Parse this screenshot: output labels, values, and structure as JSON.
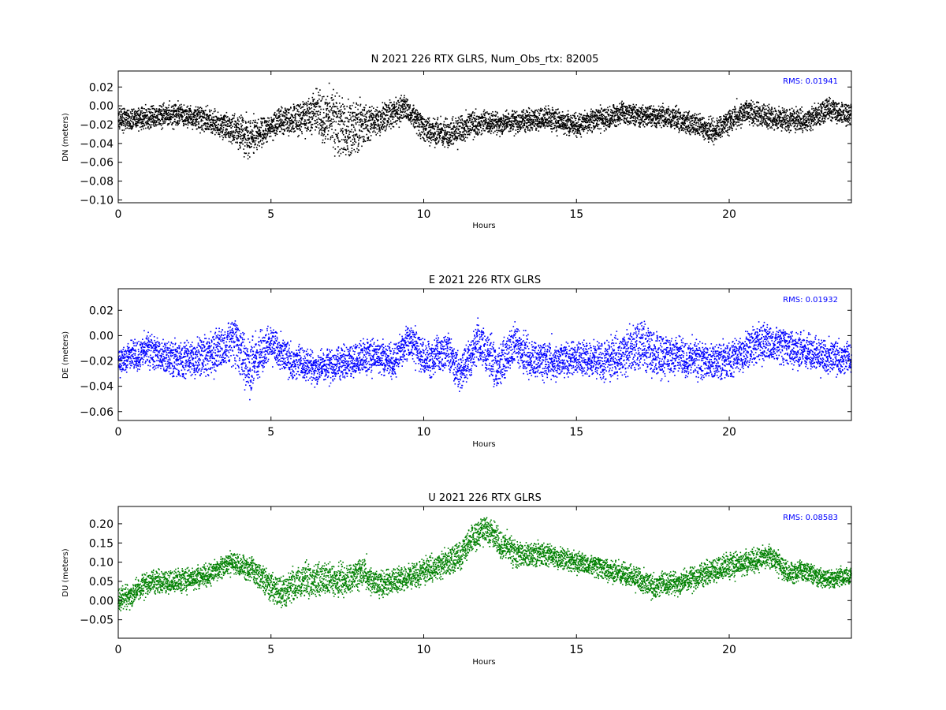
{
  "chart_data": [
    {
      "type": "scatter",
      "title": "N 2021 226 RTX  GLRS, Num_Obs_rtx: 82005",
      "xlabel": "Hours",
      "ylabel": "DN (meters)",
      "xlim": [
        0,
        24
      ],
      "ylim": [
        -0.103,
        0.037
      ],
      "xticks": [
        0,
        5,
        10,
        15,
        20
      ],
      "yticks": [
        0.02,
        0.0,
        -0.02,
        -0.04,
        -0.06,
        -0.08,
        -0.1
      ],
      "ytick_labels": [
        "0.02",
        "0.00",
        "−0.02",
        "−0.04",
        "−0.06",
        "−0.08",
        "−0.10"
      ],
      "rms_label": "RMS:  0.01941",
      "color": "#000000",
      "trend": [
        [
          0,
          -0.015
        ],
        [
          1,
          -0.012
        ],
        [
          2,
          -0.01
        ],
        [
          3,
          -0.016
        ],
        [
          3.8,
          -0.025
        ],
        [
          4.3,
          -0.035
        ],
        [
          5,
          -0.022
        ],
        [
          5.8,
          -0.012
        ],
        [
          6.5,
          -0.008
        ],
        [
          7.5,
          -0.025
        ],
        [
          8.3,
          -0.018
        ],
        [
          9.4,
          -0.002
        ],
        [
          10,
          -0.025
        ],
        [
          10.8,
          -0.03
        ],
        [
          11.5,
          -0.02
        ],
        [
          12.5,
          -0.018
        ],
        [
          14,
          -0.013
        ],
        [
          15,
          -0.02
        ],
        [
          16.5,
          -0.009
        ],
        [
          18,
          -0.012
        ],
        [
          19,
          -0.02
        ],
        [
          19.5,
          -0.028
        ],
        [
          20.5,
          -0.006
        ],
        [
          21.5,
          -0.014
        ],
        [
          22.5,
          -0.016
        ],
        [
          23.3,
          -0.005
        ],
        [
          24,
          -0.008
        ]
      ],
      "spread": [
        [
          0,
          0.011
        ],
        [
          3.5,
          0.012
        ],
        [
          4.2,
          0.02
        ],
        [
          5,
          0.011
        ],
        [
          6,
          0.017
        ],
        [
          7.5,
          0.032
        ],
        [
          8.3,
          0.016
        ],
        [
          9.5,
          0.012
        ],
        [
          11,
          0.014
        ],
        [
          12,
          0.011
        ],
        [
          24,
          0.011
        ]
      ]
    },
    {
      "type": "scatter",
      "title": "E 2021 226 RTX  GLRS",
      "xlabel": "Hours",
      "ylabel": "DE (meters)",
      "xlim": [
        0,
        24
      ],
      "ylim": [
        -0.067,
        0.037
      ],
      "xticks": [
        0,
        5,
        10,
        15,
        20
      ],
      "yticks": [
        0.02,
        0.0,
        -0.02,
        -0.04,
        -0.06
      ],
      "ytick_labels": [
        "0.02",
        "0.00",
        "−0.02",
        "−0.04",
        "−0.06"
      ],
      "rms_label": "RMS:  0.01932",
      "color": "#0000ff",
      "trend": [
        [
          0,
          -0.02
        ],
        [
          1,
          -0.012
        ],
        [
          2,
          -0.02
        ],
        [
          3,
          -0.015
        ],
        [
          3.8,
          -0.005
        ],
        [
          4.3,
          -0.025
        ],
        [
          5,
          -0.005
        ],
        [
          5.7,
          -0.022
        ],
        [
          6.5,
          -0.025
        ],
        [
          7.5,
          -0.02
        ],
        [
          8.5,
          -0.015
        ],
        [
          9,
          -0.02
        ],
        [
          9.5,
          -0.005
        ],
        [
          10.2,
          -0.02
        ],
        [
          10.8,
          -0.012
        ],
        [
          11.2,
          -0.03
        ],
        [
          11.8,
          -0.005
        ],
        [
          12.4,
          -0.025
        ],
        [
          13,
          -0.005
        ],
        [
          13.5,
          -0.02
        ],
        [
          14.5,
          -0.02
        ],
        [
          15,
          -0.018
        ],
        [
          16,
          -0.02
        ],
        [
          17,
          -0.01
        ],
        [
          18,
          -0.015
        ],
        [
          19,
          -0.02
        ],
        [
          20,
          -0.02
        ],
        [
          21,
          -0.005
        ],
        [
          22,
          -0.01
        ],
        [
          23,
          -0.015
        ],
        [
          24,
          -0.02
        ]
      ],
      "spread": [
        [
          0,
          0.01
        ],
        [
          3.5,
          0.016
        ],
        [
          4.3,
          0.02
        ],
        [
          5,
          0.012
        ],
        [
          9,
          0.012
        ],
        [
          11,
          0.014
        ],
        [
          12,
          0.016
        ],
        [
          15,
          0.011
        ],
        [
          16.5,
          0.016
        ],
        [
          17.5,
          0.018
        ],
        [
          18.5,
          0.013
        ],
        [
          21,
          0.014
        ],
        [
          24,
          0.011
        ]
      ]
    },
    {
      "type": "scatter",
      "title": "U 2021 226 RTX  GLRS",
      "xlabel": "Hours",
      "ylabel": "DU (meters)",
      "xlim": [
        0,
        24
      ],
      "ylim": [
        -0.098,
        0.245
      ],
      "xticks": [
        0,
        5,
        10,
        15,
        20
      ],
      "yticks": [
        0.2,
        0.15,
        0.1,
        0.05,
        0.0,
        -0.05
      ],
      "ytick_labels": [
        "0.20",
        "0.15",
        "0.10",
        "0.05",
        "0.00",
        "−0.05"
      ],
      "rms_label": "RMS:  0.08583",
      "color": "#008000",
      "trend": [
        [
          0,
          0.0
        ],
        [
          0.5,
          0.02
        ],
        [
          1,
          0.05
        ],
        [
          2,
          0.05
        ],
        [
          3,
          0.07
        ],
        [
          3.8,
          0.1
        ],
        [
          4.5,
          0.07
        ],
        [
          5.3,
          0.02
        ],
        [
          6,
          0.05
        ],
        [
          6.7,
          0.06
        ],
        [
          7.5,
          0.05
        ],
        [
          8,
          0.075
        ],
        [
          8.5,
          0.04
        ],
        [
          9.5,
          0.06
        ],
        [
          10.5,
          0.09
        ],
        [
          11.2,
          0.11
        ],
        [
          11.5,
          0.16
        ],
        [
          12,
          0.19
        ],
        [
          12.5,
          0.15
        ],
        [
          13,
          0.12
        ],
        [
          14,
          0.12
        ],
        [
          15,
          0.1
        ],
        [
          16,
          0.08
        ],
        [
          17,
          0.06
        ],
        [
          17.5,
          0.035
        ],
        [
          18.5,
          0.05
        ],
        [
          19.5,
          0.08
        ],
        [
          20.5,
          0.1
        ],
        [
          21.3,
          0.115
        ],
        [
          22,
          0.07
        ],
        [
          22.5,
          0.075
        ],
        [
          23.2,
          0.055
        ],
        [
          24,
          0.065
        ]
      ],
      "spread": [
        [
          0,
          0.03
        ],
        [
          3.8,
          0.025
        ],
        [
          5.3,
          0.04
        ],
        [
          6.5,
          0.04
        ],
        [
          9,
          0.028
        ],
        [
          12,
          0.035
        ],
        [
          15,
          0.025
        ],
        [
          20,
          0.03
        ],
        [
          24,
          0.022
        ]
      ]
    }
  ]
}
